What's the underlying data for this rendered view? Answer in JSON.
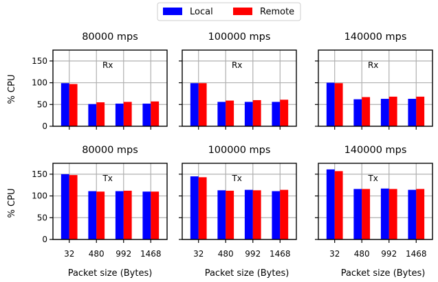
{
  "chart_data": {
    "type": "bar",
    "legend": {
      "placement": "top-center",
      "entries": [
        {
          "name": "Local",
          "color": "#0000ff"
        },
        {
          "name": "Remote",
          "color": "#ff0000"
        }
      ]
    },
    "categories": [
      "32",
      "480",
      "992",
      "1468"
    ],
    "xlabel": "Packet size (Bytes)",
    "ylabel": "% CPU",
    "ylim": [
      0,
      175
    ],
    "yticks": [
      0,
      50,
      100,
      150
    ],
    "grid": true,
    "panels": [
      {
        "title": "80000 mps",
        "annotation": "Rx",
        "row": 0,
        "col": 0,
        "series": [
          {
            "name": "Local",
            "values": [
              99,
              51,
              52,
              52
            ]
          },
          {
            "name": "Remote",
            "values": [
              97,
              55,
              56,
              57
            ]
          }
        ]
      },
      {
        "title": "100000 mps",
        "annotation": "Rx",
        "row": 0,
        "col": 1,
        "series": [
          {
            "name": "Local",
            "values": [
              99,
              56,
              56,
              56
            ]
          },
          {
            "name": "Remote",
            "values": [
              99,
              59,
              60,
              61
            ]
          }
        ]
      },
      {
        "title": "140000 mps",
        "annotation": "Rx",
        "row": 0,
        "col": 2,
        "series": [
          {
            "name": "Local",
            "values": [
              100,
              62,
              63,
              63
            ]
          },
          {
            "name": "Remote",
            "values": [
              99,
              67,
              68,
              68
            ]
          }
        ]
      },
      {
        "title": "80000 mps",
        "annotation": "Tx",
        "row": 1,
        "col": 0,
        "series": [
          {
            "name": "Local",
            "values": [
              150,
              111,
              111,
              110
            ]
          },
          {
            "name": "Remote",
            "values": [
              148,
              110,
              112,
              110
            ]
          }
        ]
      },
      {
        "title": "100000 mps",
        "annotation": "Tx",
        "row": 1,
        "col": 1,
        "series": [
          {
            "name": "Local",
            "values": [
              145,
              113,
              114,
              111
            ]
          },
          {
            "name": "Remote",
            "values": [
              143,
              112,
              113,
              114
            ]
          }
        ]
      },
      {
        "title": "140000 mps",
        "annotation": "Tx",
        "row": 1,
        "col": 2,
        "series": [
          {
            "name": "Local",
            "values": [
              161,
              116,
              117,
              114
            ]
          },
          {
            "name": "Remote",
            "values": [
              157,
              116,
              116,
              116
            ]
          }
        ]
      }
    ]
  }
}
